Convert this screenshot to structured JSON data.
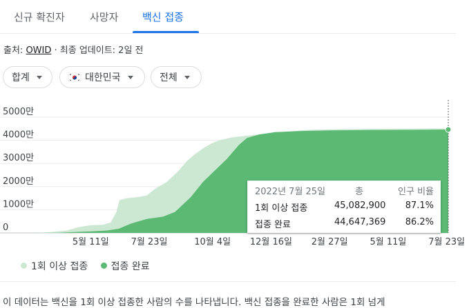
{
  "tabs": [
    {
      "label": "신규 확진자"
    },
    {
      "label": "사망자"
    },
    {
      "label": "백신 접종"
    }
  ],
  "source": {
    "prefix": "출처: ",
    "link": "OWID",
    "suffix": " · 최종 업데이트: 2일 전"
  },
  "filters": {
    "aggregate": "합계",
    "country": "대한민국",
    "scope": "전체"
  },
  "tooltip": {
    "date": "2022년 7월 25일",
    "col_total": "총",
    "col_ratio": "인구 비율",
    "rows": [
      {
        "label": "1회 이상 접종",
        "total": "45,082,900",
        "ratio": "87.1%"
      },
      {
        "label": "접종 완료",
        "total": "44,647,369",
        "ratio": "86.2%"
      }
    ]
  },
  "legend": {
    "first": "1회 이상 접종",
    "full": "접종 완료"
  },
  "description": "이 데이터는 백신을 1회 이상 접종한 사람의 수를 나타냅니다. 백신 접종을 완료한 사람은 1회 넘게",
  "colors": {
    "accent": "#1a73e8",
    "first_dose": "#cce8d3",
    "full_dose": "#5bb974"
  },
  "chart_data": {
    "type": "area",
    "ylim": [
      0,
      50000000
    ],
    "yticks": [
      {
        "value": 0,
        "label": "0"
      },
      {
        "value": 10000000,
        "label": "1000만"
      },
      {
        "value": 20000000,
        "label": "2000만"
      },
      {
        "value": 30000000,
        "label": "3000만"
      },
      {
        "value": 40000000,
        "label": "4000만"
      },
      {
        "value": 50000000,
        "label": "5000만"
      }
    ],
    "xlim": [
      0,
      516
    ],
    "xticks": [
      {
        "day": 70,
        "label": "5월 11일"
      },
      {
        "day": 143,
        "label": "7월 23일"
      },
      {
        "day": 222,
        "label": "10월 4일"
      },
      {
        "day": 295,
        "label": "12월 16일"
      },
      {
        "day": 368,
        "label": "2월 27일"
      },
      {
        "day": 441,
        "label": "5월 11일"
      },
      {
        "day": 514,
        "label": "7월 23일"
      }
    ],
    "series": [
      {
        "name": "1회 이상 접종",
        "points": [
          [
            0,
            0
          ],
          [
            20,
            400000
          ],
          [
            40,
            1000000
          ],
          [
            55,
            2500000
          ],
          [
            70,
            3300000
          ],
          [
            85,
            3500000
          ],
          [
            95,
            4500000
          ],
          [
            102,
            9000000
          ],
          [
            106,
            14200000
          ],
          [
            115,
            15000000
          ],
          [
            130,
            15500000
          ],
          [
            140,
            16200000
          ],
          [
            150,
            19000000
          ],
          [
            165,
            22000000
          ],
          [
            180,
            27000000
          ],
          [
            190,
            31000000
          ],
          [
            200,
            34000000
          ],
          [
            210,
            36500000
          ],
          [
            220,
            38500000
          ],
          [
            230,
            40000000
          ],
          [
            245,
            41200000
          ],
          [
            265,
            42000000
          ],
          [
            285,
            42700000
          ],
          [
            310,
            43500000
          ],
          [
            340,
            44500000
          ],
          [
            380,
            44800000
          ],
          [
            420,
            44950000
          ],
          [
            460,
            45000000
          ],
          [
            516,
            45082900
          ]
        ]
      },
      {
        "name": "접종 완료",
        "points": [
          [
            0,
            0
          ],
          [
            30,
            100000
          ],
          [
            60,
            500000
          ],
          [
            90,
            1000000
          ],
          [
            105,
            1800000
          ],
          [
            120,
            4000000
          ],
          [
            140,
            6000000
          ],
          [
            160,
            7000000
          ],
          [
            175,
            9000000
          ],
          [
            195,
            15500000
          ],
          [
            210,
            22000000
          ],
          [
            225,
            27000000
          ],
          [
            240,
            32000000
          ],
          [
            255,
            38000000
          ],
          [
            265,
            41000000
          ],
          [
            280,
            42500000
          ],
          [
            300,
            43500000
          ],
          [
            330,
            44000000
          ],
          [
            370,
            44300000
          ],
          [
            420,
            44400000
          ],
          [
            470,
            44500000
          ],
          [
            516,
            44647369
          ]
        ]
      }
    ]
  }
}
